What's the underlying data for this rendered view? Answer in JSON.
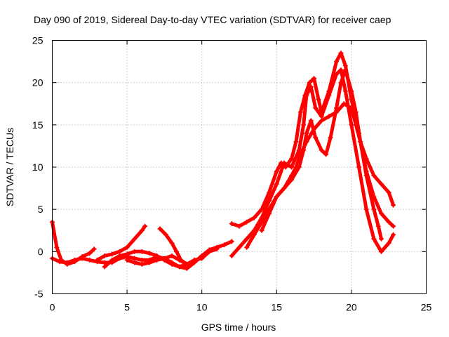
{
  "chart_data": {
    "type": "scatter",
    "title": "Day 090 of 2019, Sidereal Day-to-day VTEC variation (SDTVAR) for receiver caep",
    "xlabel": "GPS time / hours",
    "ylabel": "SDTVAR / TECUs",
    "xlim": [
      0,
      25
    ],
    "ylim": [
      -5,
      25
    ],
    "x_ticks": [
      0,
      5,
      10,
      15,
      20,
      25
    ],
    "y_ticks": [
      -5,
      0,
      5,
      10,
      15,
      20,
      25
    ],
    "x_tick_labels": [
      "0",
      "5",
      "10",
      "15",
      "20",
      "25"
    ],
    "y_tick_labels": [
      "-5",
      "0",
      "5",
      "10",
      "15",
      "20",
      "25"
    ],
    "grid": true,
    "marker": "plus",
    "color": "#ff0000",
    "series": [
      {
        "name": "trace-1",
        "points": [
          [
            0.0,
            3.5
          ],
          [
            0.3,
            0.5
          ],
          [
            0.6,
            -1.0
          ],
          [
            1.0,
            -1.5
          ],
          [
            1.5,
            -1.2
          ],
          [
            2.0,
            -0.6
          ],
          [
            2.5,
            -0.2
          ],
          [
            2.8,
            0.3
          ]
        ]
      },
      {
        "name": "trace-2",
        "points": [
          [
            0.0,
            -0.8
          ],
          [
            0.5,
            -1.2
          ],
          [
            1.0,
            -1.3
          ],
          [
            1.5,
            -1.0
          ],
          [
            2.0,
            -0.8
          ],
          [
            2.5,
            -1.0
          ],
          [
            3.0,
            -1.2
          ],
          [
            3.5,
            -1.3
          ],
          [
            4.0,
            -1.3
          ],
          [
            4.5,
            -0.8
          ],
          [
            5.0,
            -0.6
          ],
          [
            5.5,
            -0.8
          ],
          [
            6.0,
            -1.0
          ],
          [
            6.5,
            -1.0
          ],
          [
            7.0,
            -0.6
          ],
          [
            7.5,
            -0.8
          ],
          [
            8.0,
            -1.3
          ],
          [
            8.5,
            -1.8
          ],
          [
            9.0,
            -2.0
          ],
          [
            9.5,
            -1.3
          ],
          [
            10.0,
            -0.5
          ],
          [
            10.5,
            0.2
          ],
          [
            11.0,
            0.5
          ],
          [
            11.5,
            0.8
          ],
          [
            12.0,
            1.2
          ]
        ]
      },
      {
        "name": "trace-3",
        "points": [
          [
            3.0,
            -1.0
          ],
          [
            3.5,
            -0.5
          ],
          [
            4.0,
            -0.3
          ],
          [
            4.5,
            0.0
          ],
          [
            5.0,
            0.5
          ],
          [
            5.5,
            1.5
          ],
          [
            6.0,
            2.5
          ],
          [
            6.2,
            3.0
          ]
        ]
      },
      {
        "name": "trace-4",
        "points": [
          [
            3.5,
            -1.8
          ],
          [
            4.0,
            -1.0
          ],
          [
            4.5,
            -0.5
          ],
          [
            5.0,
            -0.3
          ],
          [
            5.5,
            0.0
          ],
          [
            6.0,
            0.0
          ],
          [
            6.5,
            -0.2
          ],
          [
            7.0,
            -0.5
          ],
          [
            7.5,
            -1.0
          ],
          [
            8.0,
            -1.5
          ],
          [
            8.5,
            -1.8
          ],
          [
            9.0,
            -1.5
          ],
          [
            9.5,
            -1.0
          ],
          [
            10.0,
            -0.8
          ],
          [
            10.5,
            0.0
          ],
          [
            11.0,
            0.3
          ]
        ]
      },
      {
        "name": "trace-5",
        "points": [
          [
            5.0,
            -1.0
          ],
          [
            5.5,
            -1.3
          ],
          [
            6.0,
            -1.5
          ],
          [
            6.5,
            -1.3
          ],
          [
            7.0,
            -1.0
          ],
          [
            7.5,
            -0.8
          ],
          [
            8.0,
            -0.5
          ],
          [
            8.5,
            -1.0
          ],
          [
            9.0,
            -1.5
          ]
        ]
      },
      {
        "name": "trace-6",
        "points": [
          [
            7.2,
            2.7
          ],
          [
            7.6,
            2.0
          ],
          [
            8.0,
            1.0
          ],
          [
            8.3,
            0.0
          ],
          [
            8.6,
            -1.0
          ],
          [
            9.0,
            -1.5
          ]
        ]
      },
      {
        "name": "trace-7",
        "points": [
          [
            12.0,
            -0.5
          ],
          [
            12.5,
            0.5
          ],
          [
            13.0,
            1.5
          ],
          [
            13.5,
            2.5
          ],
          [
            14.0,
            4.0
          ],
          [
            14.5,
            6.0
          ],
          [
            15.0,
            8.0
          ],
          [
            15.5,
            10.5
          ],
          [
            16.0,
            10.0
          ],
          [
            16.5,
            12.0
          ],
          [
            16.8,
            15.0
          ],
          [
            17.0,
            18.5
          ],
          [
            17.3,
            19.5
          ],
          [
            17.6,
            17.0
          ],
          [
            18.0,
            16.0
          ],
          [
            18.5,
            18.5
          ],
          [
            19.0,
            21.0
          ],
          [
            19.3,
            21.5
          ],
          [
            19.6,
            19.0
          ],
          [
            20.0,
            15.0
          ],
          [
            20.5,
            10.0
          ],
          [
            21.0,
            5.0
          ],
          [
            21.5,
            1.5
          ],
          [
            22.0,
            0.0
          ],
          [
            22.5,
            1.0
          ],
          [
            22.8,
            2.0
          ]
        ]
      },
      {
        "name": "trace-8",
        "points": [
          [
            12.0,
            3.3
          ],
          [
            12.5,
            3.0
          ],
          [
            13.0,
            3.5
          ],
          [
            13.5,
            4.0
          ],
          [
            14.0,
            5.0
          ],
          [
            14.5,
            7.0
          ],
          [
            15.0,
            9.5
          ],
          [
            15.3,
            10.5
          ],
          [
            15.6,
            10.0
          ],
          [
            16.0,
            11.0
          ],
          [
            16.3,
            13.0
          ],
          [
            16.6,
            16.5
          ],
          [
            16.9,
            18.5
          ],
          [
            17.2,
            20.0
          ],
          [
            17.5,
            20.5
          ],
          [
            17.8,
            18.0
          ],
          [
            18.0,
            16.5
          ],
          [
            18.5,
            19.0
          ],
          [
            19.0,
            22.5
          ],
          [
            19.3,
            23.5
          ],
          [
            19.6,
            22.0
          ],
          [
            20.0,
            18.0
          ],
          [
            20.5,
            14.0
          ],
          [
            21.0,
            9.0
          ],
          [
            21.5,
            5.0
          ],
          [
            21.8,
            3.0
          ],
          [
            22.0,
            1.5
          ]
        ]
      },
      {
        "name": "trace-9",
        "points": [
          [
            13.0,
            0.5
          ],
          [
            13.5,
            2.0
          ],
          [
            14.0,
            3.5
          ],
          [
            14.5,
            5.0
          ],
          [
            15.0,
            6.5
          ],
          [
            15.5,
            7.5
          ],
          [
            16.0,
            8.5
          ],
          [
            16.5,
            10.0
          ],
          [
            16.8,
            12.0
          ],
          [
            17.0,
            14.0
          ],
          [
            17.3,
            15.5
          ],
          [
            17.6,
            13.5
          ],
          [
            18.0,
            12.0
          ],
          [
            18.3,
            11.5
          ],
          [
            18.6,
            13.5
          ],
          [
            19.0,
            17.0
          ],
          [
            19.3,
            20.0
          ],
          [
            19.6,
            21.5
          ],
          [
            20.0,
            19.0
          ],
          [
            20.3,
            16.5
          ],
          [
            20.6,
            13.0
          ],
          [
            21.0,
            9.5
          ],
          [
            21.5,
            6.5
          ],
          [
            22.0,
            4.5
          ],
          [
            22.5,
            3.5
          ],
          [
            22.8,
            3.0
          ]
        ]
      },
      {
        "name": "trace-10",
        "points": [
          [
            14.0,
            2.5
          ],
          [
            14.5,
            4.5
          ],
          [
            15.0,
            6.5
          ],
          [
            15.5,
            7.5
          ],
          [
            16.0,
            9.0
          ],
          [
            16.3,
            10.0
          ],
          [
            16.6,
            11.5
          ],
          [
            17.0,
            13.0
          ],
          [
            17.5,
            14.5
          ],
          [
            18.0,
            15.5
          ],
          [
            18.5,
            16.0
          ],
          [
            19.0,
            16.5
          ],
          [
            19.5,
            17.5
          ],
          [
            20.0,
            17.0
          ],
          [
            20.3,
            15.0
          ],
          [
            20.6,
            13.0
          ],
          [
            21.0,
            11.0
          ],
          [
            21.5,
            9.0
          ],
          [
            22.0,
            8.0
          ],
          [
            22.5,
            7.0
          ],
          [
            22.8,
            5.5
          ]
        ]
      }
    ]
  }
}
